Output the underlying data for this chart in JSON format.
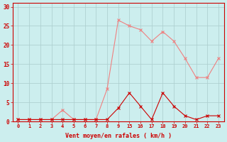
{
  "x_labels": [
    "0",
    "1",
    "2",
    "3",
    "4",
    "5",
    "6",
    "7",
    "8",
    "9",
    "15",
    "16",
    "17",
    "18",
    "19",
    "20",
    "21",
    "22",
    "23"
  ],
  "x_positions": [
    0,
    1,
    2,
    3,
    4,
    5,
    6,
    7,
    8,
    9,
    10,
    11,
    12,
    13,
    14,
    15,
    16,
    17,
    18
  ],
  "y_rafales": [
    0.5,
    0.5,
    0.5,
    0.5,
    3.0,
    0.5,
    0.5,
    0.5,
    8.5,
    26.5,
    25.0,
    24.0,
    21.0,
    23.5,
    21.0,
    16.5,
    11.5,
    11.5,
    16.5
  ],
  "y_moyen": [
    0.5,
    0.5,
    0.5,
    0.5,
    0.5,
    0.5,
    0.5,
    0.5,
    0.5,
    3.5,
    7.5,
    4.0,
    0.5,
    7.5,
    4.0,
    1.5,
    0.5,
    1.5,
    1.5
  ],
  "color_rafales": "#f08080",
  "color_moyen": "#cc0000",
  "background_color": "#cceeee",
  "grid_color": "#aacccc",
  "axis_color": "#cc0000",
  "xlabel": "Vent moyen/en rafales ( km/h )",
  "ylabel_ticks": [
    0,
    5,
    10,
    15,
    20,
    25,
    30
  ],
  "ylim": [
    0,
    31
  ],
  "xlim": [
    -0.5,
    18.5
  ]
}
